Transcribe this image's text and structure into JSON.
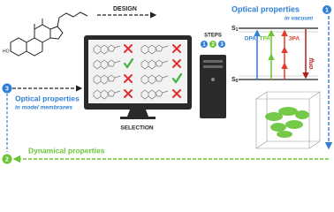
{
  "design": "DESIGN",
  "optical_vacuum": {
    "step": "1",
    "title": "Optical properties",
    "subtitle": "in vacuum"
  },
  "energy_diagram": {
    "s1": {
      "label": "S",
      "sub": "1"
    },
    "s0": {
      "label": "S",
      "sub": "0"
    },
    "transitions": [
      "OPA",
      "TPA",
      "3PA"
    ],
    "emission": "fluo"
  },
  "steps": {
    "label": "STEPS",
    "numbers": [
      "1",
      "2",
      "3"
    ]
  },
  "selection": "SELECTION",
  "optical_membranes": {
    "step": "3",
    "title": "Optical properties",
    "subtitle": "in model membranes"
  },
  "dynamical": {
    "step": "2",
    "title": "Dynamical properties"
  }
}
